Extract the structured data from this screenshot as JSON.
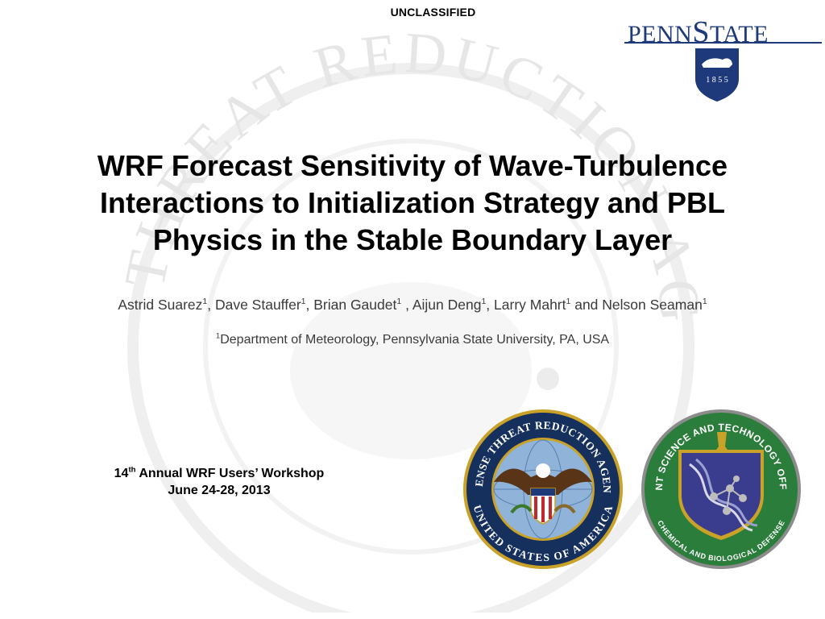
{
  "header": {
    "classification": "UNCLASSIFIED"
  },
  "logos": {
    "psu_prefix": "PENN",
    "psu_cap": "S",
    "psu_rest": "TATE",
    "psu_year": "1 8 5 5",
    "watermark_text": "THREAT REDUCTION AGENCY",
    "dtra_top": "DEFENSE THREAT REDUCTION AGENCY",
    "dtra_bottom": "UNITED STATES OF AMERICA",
    "jsto_top": "JOINT SCIENCE AND TECHNOLOGY OFFICE",
    "jsto_bottom": "CHEMICAL AND BIOLOGICAL DEFENSE"
  },
  "title": {
    "line1": "WRF Forecast Sensitivity of Wave-Turbulence",
    "line2": "Interactions to Initialization Strategy and PBL",
    "line3": "Physics in the Stable Boundary Layer"
  },
  "authors": [
    {
      "name": "Astrid Suarez",
      "sup": "1",
      "sep": ", "
    },
    {
      "name": "Dave Stauffer",
      "sup": "1",
      "sep": ", "
    },
    {
      "name": "Brian Gaudet",
      "sup": "1",
      "sep": " , "
    },
    {
      "name": "Aijun Deng",
      "sup": "1",
      "sep": ", "
    },
    {
      "name": "Larry Mahrt",
      "sup": "1",
      "sep": " and "
    },
    {
      "name": "Nelson Seaman",
      "sup": "1",
      "sep": ""
    }
  ],
  "affiliation": {
    "sup": "1",
    "text": "Department of Meteorology, Pennsylvania State University, PA, USA"
  },
  "workshop": {
    "number": "14",
    "ordinal": "th",
    "name": " Annual WRF Users’ Workshop",
    "dates": "June 24-28, 2013"
  }
}
